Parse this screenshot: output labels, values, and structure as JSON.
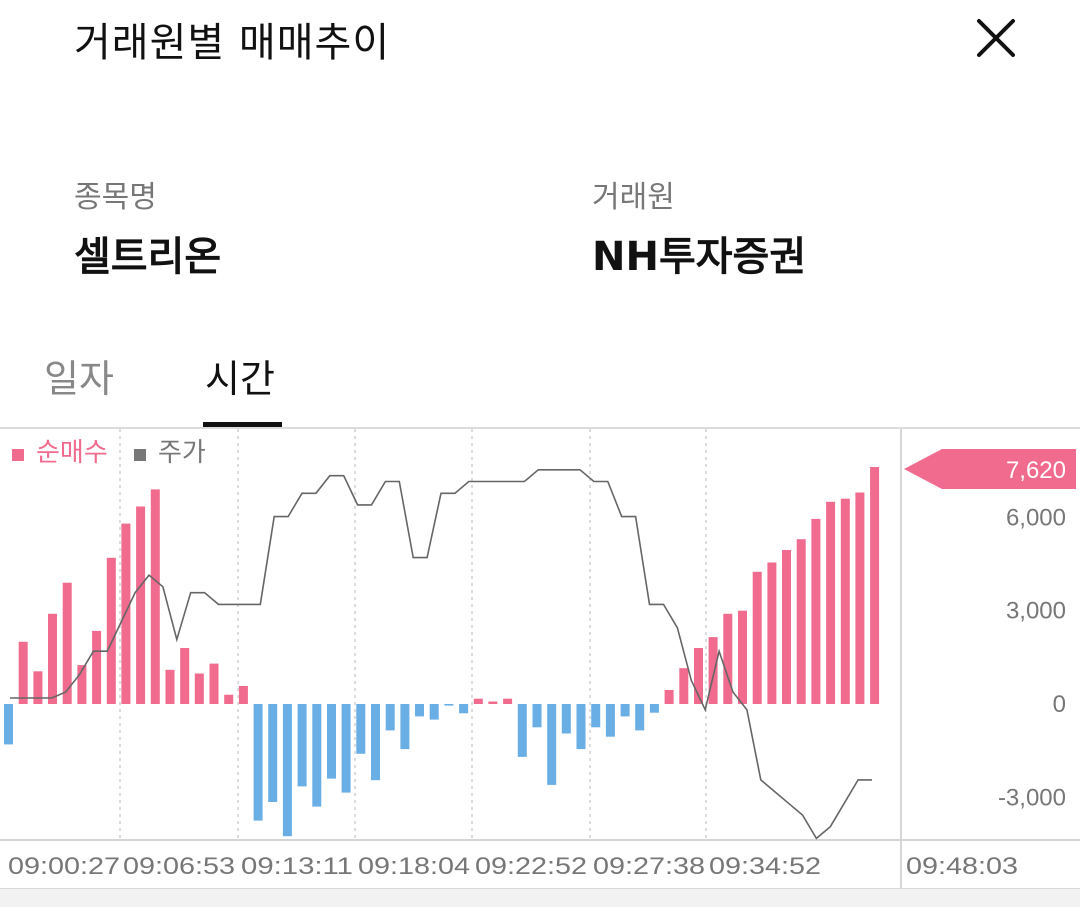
{
  "header": {
    "title": "거래원별 매매추이",
    "close_icon": "close-icon"
  },
  "info": {
    "stock_label": "종목명",
    "stock_value": "셀트리온",
    "broker_label": "거래원",
    "broker_value": "NH투자증권"
  },
  "tabs": [
    {
      "label": "일자",
      "active": false
    },
    {
      "label": "시간",
      "active": true
    }
  ],
  "colors": {
    "buy": "#f06b8e",
    "sell": "#6aaee6",
    "price": "#666666",
    "badge": "#f06b8e"
  },
  "chart_data": {
    "type": "bar",
    "legend": [
      {
        "name": "순매수",
        "color": "#f06b8e"
      },
      {
        "name": "주가",
        "color": "#777777"
      }
    ],
    "ylim": [
      -4300,
      8000
    ],
    "yticks": [
      6000,
      3000,
      0,
      -3000
    ],
    "ytick_labels": [
      "6,000",
      "3,000",
      "0",
      "-3,000"
    ],
    "last_value_label": "7,620",
    "x_tick_labels": [
      "09:00:27",
      "09:06:53",
      "09:13:11",
      "09:18:04",
      "09:22:52",
      "09:27:38",
      "09:34:52"
    ],
    "x_end_label": "09:48:03",
    "series": [
      {
        "name": "순매수",
        "type": "bar",
        "values": [
          -1300,
          2000,
          1050,
          2900,
          3900,
          1250,
          2350,
          4700,
          5800,
          6350,
          6900,
          1100,
          1800,
          980,
          1300,
          300,
          580,
          -3750,
          -3150,
          -4250,
          -2650,
          -3300,
          -2400,
          -2850,
          -1600,
          -2450,
          -850,
          -1450,
          -400,
          -500,
          -50,
          -300,
          170,
          80,
          170,
          -1700,
          -750,
          -2600,
          -950,
          -1450,
          -750,
          -1050,
          -400,
          -850,
          -280,
          450,
          1150,
          1800,
          2150,
          2900,
          3000,
          4250,
          4550,
          4950,
          5300,
          5950,
          6500,
          6600,
          6800,
          7620
        ]
      },
      {
        "name": "주가",
        "type": "line",
        "values": [
          5000,
          5000,
          5000,
          5000,
          5050,
          5200,
          5400,
          5400,
          5650,
          5900,
          6050,
          5950,
          5500,
          5900,
          5900,
          5800,
          5800,
          5800,
          5800,
          6550,
          6550,
          6750,
          6750,
          6900,
          6900,
          6650,
          6650,
          6850,
          6850,
          6200,
          6200,
          6750,
          6750,
          6850,
          6850,
          6850,
          6850,
          6850,
          6950,
          6950,
          6950,
          6950,
          6850,
          6850,
          6550,
          6550,
          5800,
          5800,
          5600,
          5150,
          4900,
          5400,
          5050,
          4900,
          4300,
          4200,
          4100,
          4000,
          3800,
          3900,
          4100,
          4300,
          4300
        ]
      }
    ]
  }
}
